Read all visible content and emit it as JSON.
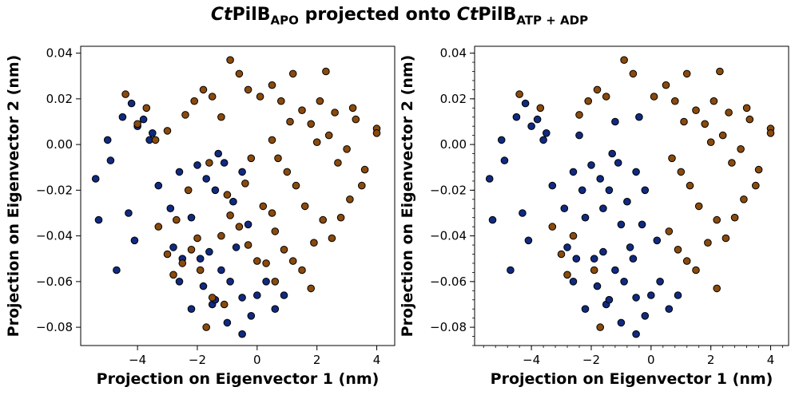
{
  "title": {
    "part1_italic": "Ct",
    "part1": "PilB",
    "part1_sub": "APO",
    "middle": " projected onto ",
    "part2_italic": "Ct",
    "part2": "PilB",
    "part2_sub": "ATP + ADP"
  },
  "colors": {
    "series_navy": "#0f2a80",
    "series_brown": "#8a4a0c",
    "marker_edge": "#000000"
  },
  "chart_data": [
    {
      "type": "scatter",
      "xlabel": "Projection on Eigenvector 1 (nm)",
      "ylabel": "Projection on Eigenvector 2 (nm)",
      "xlim": [
        -5.9,
        4.6
      ],
      "ylim": [
        -0.088,
        0.043
      ],
      "xticks": [
        -4,
        -2,
        0,
        2,
        4
      ],
      "yticks": [
        -0.08,
        -0.06,
        -0.04,
        -0.02,
        0.0,
        0.02,
        0.04
      ],
      "xtick_labels": [
        "−4",
        "−2",
        "0",
        "2",
        "4"
      ],
      "ytick_labels": [
        "−0.08",
        "−0.06",
        "−0.04",
        "−0.02",
        "0.00",
        "0.02",
        "0.04"
      ],
      "minor_ticks": false,
      "draw_order": [
        "navy",
        "brown"
      ],
      "series": [
        {
          "color": "navy",
          "points": [
            [
              -4.7,
              -0.055
            ],
            [
              -4.3,
              -0.03
            ],
            [
              -4.1,
              -0.042
            ],
            [
              -5.3,
              -0.033
            ],
            [
              -4.9,
              -0.007
            ],
            [
              -5.4,
              -0.015
            ],
            [
              -4.5,
              0.012
            ],
            [
              -4.2,
              0.018
            ],
            [
              -3.6,
              0.002
            ],
            [
              -3.3,
              -0.018
            ],
            [
              -2.9,
              -0.028
            ],
            [
              -2.6,
              -0.012
            ],
            [
              -2.2,
              -0.032
            ],
            [
              -1.7,
              -0.015
            ],
            [
              -1.4,
              -0.02
            ],
            [
              -1.1,
              -0.008
            ],
            [
              -0.8,
              -0.025
            ],
            [
              -0.5,
              -0.012
            ],
            [
              -0.3,
              -0.035
            ],
            [
              -1.2,
              -0.055
            ],
            [
              -0.9,
              -0.06
            ],
            [
              -0.5,
              -0.067
            ],
            [
              -1.5,
              -0.07
            ],
            [
              -1.8,
              -0.062
            ],
            [
              -2.2,
              -0.072
            ],
            [
              -0.2,
              -0.075
            ],
            [
              -0.5,
              -0.083
            ],
            [
              -1.0,
              -0.078
            ],
            [
              0.0,
              -0.066
            ],
            [
              0.3,
              -0.06
            ],
            [
              0.6,
              -0.072
            ],
            [
              0.9,
              -0.066
            ],
            [
              -2.6,
              -0.06
            ],
            [
              -2.8,
              -0.045
            ],
            [
              -2.5,
              -0.05
            ],
            [
              -1.9,
              -0.05
            ],
            [
              -1.6,
              -0.047
            ],
            [
              -3.5,
              0.005
            ],
            [
              -3.8,
              0.011
            ],
            [
              -5.0,
              0.002
            ],
            [
              -4.0,
              0.008
            ],
            [
              -1.3,
              -0.004
            ],
            [
              -2.0,
              -0.009
            ],
            [
              -0.7,
              -0.045
            ],
            [
              -1.4,
              -0.068
            ]
          ]
        },
        {
          "color": "brown",
          "points": [
            [
              -4.4,
              0.022
            ],
            [
              -4.0,
              0.009
            ],
            [
              -3.7,
              0.016
            ],
            [
              -3.3,
              -0.036
            ],
            [
              -3.0,
              -0.048
            ],
            [
              -2.8,
              -0.057
            ],
            [
              -2.5,
              -0.052
            ],
            [
              -2.2,
              -0.046
            ],
            [
              -1.9,
              -0.055
            ],
            [
              -1.7,
              -0.08
            ],
            [
              -1.5,
              -0.067
            ],
            [
              -1.2,
              -0.04
            ],
            [
              -0.9,
              -0.031
            ],
            [
              -0.6,
              -0.036
            ],
            [
              -0.3,
              -0.044
            ],
            [
              0.0,
              -0.051
            ],
            [
              0.3,
              -0.052
            ],
            [
              0.6,
              -0.038
            ],
            [
              0.9,
              -0.046
            ],
            [
              1.2,
              -0.051
            ],
            [
              1.5,
              -0.055
            ],
            [
              1.8,
              -0.063
            ],
            [
              2.2,
              -0.033
            ],
            [
              2.5,
              -0.041
            ],
            [
              -2.4,
              0.013
            ],
            [
              -2.1,
              0.019
            ],
            [
              -1.8,
              0.024
            ],
            [
              -1.5,
              0.021
            ],
            [
              -1.2,
              0.012
            ],
            [
              -0.9,
              0.037
            ],
            [
              -0.6,
              0.031
            ],
            [
              -0.3,
              0.024
            ],
            [
              0.1,
              0.021
            ],
            [
              0.5,
              0.026
            ],
            [
              0.8,
              0.019
            ],
            [
              1.2,
              0.031
            ],
            [
              1.5,
              0.015
            ],
            [
              1.8,
              0.009
            ],
            [
              2.1,
              0.019
            ],
            [
              2.4,
              0.004
            ],
            [
              2.7,
              -0.008
            ],
            [
              3.0,
              -0.002
            ],
            [
              3.3,
              0.011
            ],
            [
              3.6,
              -0.011
            ],
            [
              4.0,
              0.007
            ],
            [
              4.0,
              0.005
            ],
            [
              3.5,
              -0.018
            ],
            [
              3.1,
              -0.024
            ],
            [
              2.8,
              -0.032
            ],
            [
              1.6,
              -0.027
            ],
            [
              1.3,
              -0.018
            ],
            [
              1.0,
              -0.012
            ],
            [
              0.7,
              -0.006
            ],
            [
              0.5,
              0.002
            ],
            [
              2.0,
              0.001
            ],
            [
              1.1,
              0.01
            ],
            [
              3.2,
              0.016
            ],
            [
              2.3,
              0.032
            ],
            [
              -2.7,
              -0.033
            ],
            [
              -2.0,
              -0.041
            ],
            [
              -1.0,
              -0.022
            ],
            [
              -0.4,
              -0.017
            ],
            [
              -3.0,
              0.006
            ],
            [
              -3.4,
              0.002
            ],
            [
              -1.6,
              -0.008
            ],
            [
              0.2,
              -0.027
            ],
            [
              0.5,
              -0.03
            ],
            [
              2.6,
              0.014
            ],
            [
              1.9,
              -0.043
            ],
            [
              -1.1,
              -0.07
            ],
            [
              0.6,
              -0.06
            ],
            [
              -0.2,
              -0.006
            ],
            [
              -2.3,
              -0.02
            ]
          ]
        }
      ]
    },
    {
      "type": "scatter",
      "xlabel": "Projection on Eigenvector 1 (nm)",
      "ylabel": "Projection on Eigenvector 2 (nm)",
      "xlim": [
        -5.9,
        4.6
      ],
      "ylim": [
        -0.088,
        0.043
      ],
      "xticks": [
        -4,
        -2,
        0,
        2,
        4
      ],
      "yticks": [
        -0.08,
        -0.06,
        -0.04,
        -0.02,
        0.0,
        0.02,
        0.04
      ],
      "xtick_labels": [
        "−4",
        "−2",
        "0",
        "2",
        "4"
      ],
      "ytick_labels": [
        "−0.08",
        "−0.06",
        "−0.04",
        "−0.02",
        "0.00",
        "0.02",
        "0.04"
      ],
      "minor_ticks": true,
      "draw_order": [
        "brown",
        "navy"
      ],
      "series": [
        {
          "color": "brown",
          "points": [
            [
              -4.4,
              0.022
            ],
            [
              -3.7,
              0.016
            ],
            [
              -3.0,
              -0.048
            ],
            [
              -2.8,
              -0.057
            ],
            [
              -1.7,
              -0.08
            ],
            [
              -1.9,
              -0.055
            ],
            [
              -2.4,
              0.013
            ],
            [
              -2.1,
              0.019
            ],
            [
              -1.8,
              0.024
            ],
            [
              -1.5,
              0.021
            ],
            [
              -0.9,
              0.037
            ],
            [
              -0.6,
              0.031
            ],
            [
              0.1,
              0.021
            ],
            [
              0.5,
              0.026
            ],
            [
              0.8,
              0.019
            ],
            [
              1.2,
              0.031
            ],
            [
              1.5,
              0.015
            ],
            [
              1.8,
              0.009
            ],
            [
              2.1,
              0.019
            ],
            [
              2.4,
              0.004
            ],
            [
              2.7,
              -0.008
            ],
            [
              3.0,
              -0.002
            ],
            [
              3.3,
              0.011
            ],
            [
              3.6,
              -0.011
            ],
            [
              4.0,
              0.007
            ],
            [
              4.0,
              0.005
            ],
            [
              3.5,
              -0.018
            ],
            [
              3.1,
              -0.024
            ],
            [
              2.8,
              -0.032
            ],
            [
              1.6,
              -0.027
            ],
            [
              1.3,
              -0.018
            ],
            [
              1.0,
              -0.012
            ],
            [
              0.7,
              -0.006
            ],
            [
              2.0,
              0.001
            ],
            [
              1.1,
              0.01
            ],
            [
              3.2,
              0.016
            ],
            [
              2.3,
              0.032
            ],
            [
              2.2,
              -0.063
            ],
            [
              2.6,
              0.014
            ],
            [
              1.9,
              -0.043
            ],
            [
              0.9,
              -0.046
            ],
            [
              1.2,
              -0.051
            ],
            [
              1.5,
              -0.055
            ],
            [
              0.6,
              -0.038
            ],
            [
              2.2,
              -0.033
            ],
            [
              2.5,
              -0.041
            ],
            [
              -2.6,
              -0.04
            ],
            [
              -3.3,
              -0.036
            ]
          ]
        },
        {
          "color": "navy",
          "points": [
            [
              -4.7,
              -0.055
            ],
            [
              -4.3,
              -0.03
            ],
            [
              -4.1,
              -0.042
            ],
            [
              -5.3,
              -0.033
            ],
            [
              -4.9,
              -0.007
            ],
            [
              -5.4,
              -0.015
            ],
            [
              -4.5,
              0.012
            ],
            [
              -4.2,
              0.018
            ],
            [
              -3.6,
              0.002
            ],
            [
              -3.3,
              -0.018
            ],
            [
              -2.9,
              -0.028
            ],
            [
              -2.6,
              -0.012
            ],
            [
              -2.2,
              -0.032
            ],
            [
              -1.7,
              -0.015
            ],
            [
              -1.4,
              -0.02
            ],
            [
              -1.1,
              -0.008
            ],
            [
              -0.8,
              -0.025
            ],
            [
              -0.5,
              -0.012
            ],
            [
              -0.3,
              -0.035
            ],
            [
              -1.2,
              -0.055
            ],
            [
              -0.9,
              -0.06
            ],
            [
              -0.5,
              -0.067
            ],
            [
              -1.5,
              -0.07
            ],
            [
              -1.8,
              -0.062
            ],
            [
              -2.2,
              -0.072
            ],
            [
              -0.2,
              -0.075
            ],
            [
              -0.5,
              -0.083
            ],
            [
              -1.0,
              -0.078
            ],
            [
              0.0,
              -0.066
            ],
            [
              0.3,
              -0.06
            ],
            [
              0.6,
              -0.072
            ],
            [
              0.9,
              -0.066
            ],
            [
              -2.6,
              -0.06
            ],
            [
              -2.8,
              -0.045
            ],
            [
              -2.5,
              -0.05
            ],
            [
              -1.9,
              -0.05
            ],
            [
              -1.6,
              -0.047
            ],
            [
              -3.5,
              0.005
            ],
            [
              -3.8,
              0.011
            ],
            [
              -5.0,
              0.002
            ],
            [
              -4.0,
              0.008
            ],
            [
              -1.3,
              -0.004
            ],
            [
              -2.0,
              -0.009
            ],
            [
              -0.7,
              -0.045
            ],
            [
              -1.4,
              -0.068
            ],
            [
              -1.0,
              -0.035
            ],
            [
              -0.6,
              -0.05
            ],
            [
              -1.6,
              -0.028
            ],
            [
              -2.3,
              -0.02
            ],
            [
              -0.2,
              -0.02
            ],
            [
              0.2,
              -0.042
            ],
            [
              -1.2,
              0.01
            ],
            [
              -0.4,
              0.012
            ],
            [
              -2.4,
              0.004
            ]
          ]
        }
      ]
    }
  ]
}
